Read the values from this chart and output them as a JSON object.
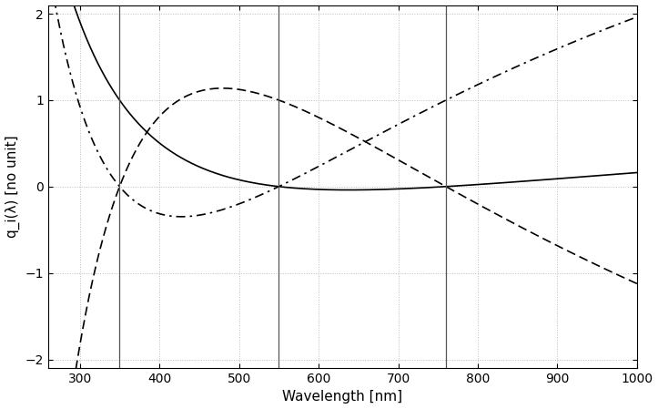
{
  "lambda_min": 260,
  "lambda_max": 1000,
  "ylim": [
    -2.1,
    2.1
  ],
  "yticks": [
    -2,
    -1,
    0,
    1,
    2
  ],
  "xticks": [
    300,
    400,
    500,
    600,
    700,
    800,
    900,
    1000
  ],
  "vlines": [
    350,
    550,
    760
  ],
  "knots_nm": [
    350,
    550,
    760
  ],
  "xlabel": "Wavelength [nm]",
  "ylabel": "q_i(λ) [no unit]",
  "line_color": "#000000",
  "vline_color": "#555555",
  "grid_color": "#bbbbbb",
  "figsize": [
    7.23,
    4.49
  ],
  "dpi": 100,
  "line_width": 1.2,
  "fontsize_label": 11,
  "fontsize_tick": 10
}
